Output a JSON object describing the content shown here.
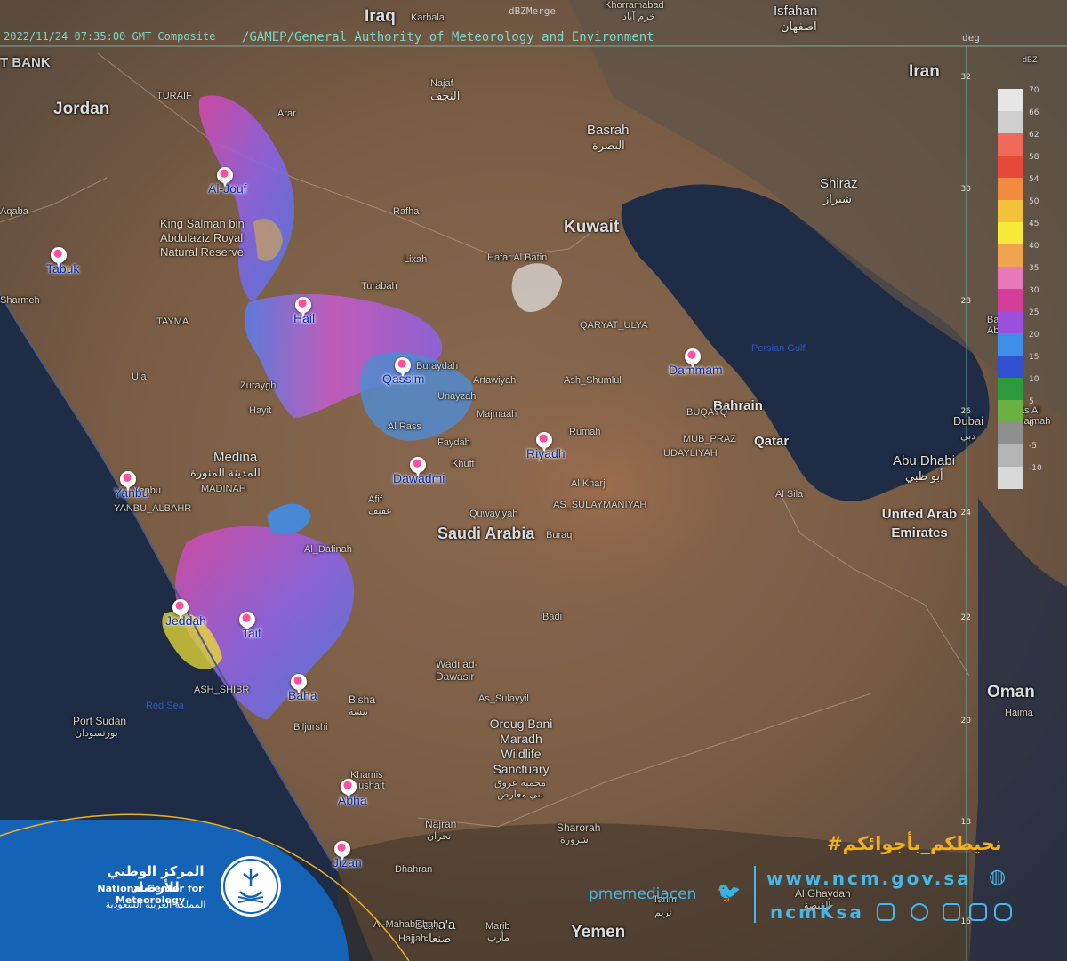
{
  "header": {
    "timestamp": "2022/11/24 07:35:00 GMT Composite",
    "source": "/GAMEP/General Authority of Meteorology and Environment",
    "product": "dBZMerge",
    "unit": "deg"
  },
  "labels": {
    "iraq": "Iraq",
    "karbala": "Karbala",
    "khorramabad": "Khorramabad",
    "khorramabad_ar": "خرم آباد",
    "isfahan": "Isfahan",
    "isfahan_ar": "اصفهان",
    "westbank": "T BANK",
    "jordan": "Jordan",
    "iran": "Iran",
    "najaf": "Najaf",
    "najaf_ar": "النجف",
    "basrah": "Basrah",
    "basrah_ar": "البصرة",
    "shiraz": "Shiraz",
    "shiraz_ar": "شيراز",
    "kuwait": "Kuwait",
    "turaif": "TURAIF",
    "arar": "Arar",
    "rafha": "Rafha",
    "lixah": "Lixah",
    "hafar": "Hafar Al Batin",
    "qaryat": "QARYAT_ULYA",
    "aqaba": "Aqaba",
    "tabuk": "Tabuk",
    "sharmeh": "Sharmeh",
    "king_salman": "King Salman bin Abdulaziz Royal Natural Reserve",
    "turabah": "Turabah",
    "tayma": "TAYMA",
    "ula": "Ula",
    "burayda": "Buraydah",
    "artawiyah": "Artawiyah",
    "shumlul": "Ash_Shumlul",
    "persian_gulf": "Persian Gulf",
    "bandar": "Bandar Abbas",
    "bahrain": "Bahrain",
    "buqayq": "BUQAYQ",
    "mubraz": "MUB_PRAZ",
    "udayliyah": "UDAYLIYAH",
    "qatar": "Qatar",
    "dubai": "Dubai",
    "dubai_ar": "دبي",
    "raskhaimah": "Ras Al Khaimah",
    "abudhabi": "Abu Dhabi",
    "abudhabi_ar": "أبو ظبي",
    "uae": "United Arab Emirates",
    "alsila": "Al Sila",
    "zurayq": "Zuraygh",
    "hayit": "Hayit",
    "majnaah": "Majmaah",
    "rumah": "Rumah",
    "faydah": "Faydah",
    "khuff": "Khuff",
    "alrass": "Al Rass",
    "unayzah": "Unayzah",
    "medina": "Medina",
    "medina_ar": "المدينة المنورة",
    "madinah": "MADINAH",
    "yanbu": "Yanbu",
    "yanbu2": "YANBU_ALBAHR",
    "afif": "Afif",
    "afif_ar": "عفيف",
    "alkharj": "Al Kharj",
    "sulaymaniyah": "AS_SULAYMANIYAH",
    "quwayiyah": "Quwayiyah",
    "saudi": "Saudi Arabia",
    "buqay": "Buraq",
    "adinah": "Al_Dafinah",
    "badi": "Badi",
    "wadi": "Wadi ad-Dawasir",
    "sulayyil": "As_Sulayyil",
    "oman": "Oman",
    "haima": "Haima",
    "portsudan": "Port Sudan",
    "portsudan_ar": "بورتسودان",
    "redsea": "Red Sea",
    "ashshibr": "ASH_SHIBR",
    "bisha": "Bisha",
    "bisha_ar": "بيشة",
    "biljurshi": "Biljurshi",
    "oroug": "Oroug Bani Maradh Wildlife Sanctuary",
    "oroug_ar": "محمية عروق بني معارض",
    "khamis": "Khamis Mushait",
    "najran": "Najran",
    "najran_ar": "نجران",
    "sharorah": "Sharorah",
    "sharorah_ar": "شرورة",
    "dhahran": "Dhahran",
    "yemen": "Yemen",
    "sanaa": "Sana'a",
    "sanaa_ar": "صنعاء",
    "marib": "Marib",
    "marib_ar": "مأرب",
    "alghaydah": "Al Ghaydah",
    "alghaydah_ar": "الغيضة",
    "hajjah": "Hajjah",
    "harim": "Tarim",
    "harim_ar": "تريم",
    "almahabishah": "Al-Mahabishah",
    "baha": "Baha"
  },
  "radar_sites": [
    {
      "name": "Al-Jouf",
      "city": "Al-Jouf"
    },
    {
      "name": "Tabuk",
      "city": "Tabuk"
    },
    {
      "name": "Hail",
      "city": "Hail"
    },
    {
      "name": "Qassim",
      "city": "Qassim"
    },
    {
      "name": "Dammam",
      "city": "Dammam"
    },
    {
      "name": "Riyadh",
      "city": "Riyadh"
    },
    {
      "name": "Dawadmi",
      "city": "Dawadmi"
    },
    {
      "name": "Yanbu",
      "city": "Yanbu"
    },
    {
      "name": "Jeddah",
      "city": "Jeddah"
    },
    {
      "name": "Taif",
      "city": "Taif"
    },
    {
      "name": "Baha",
      "city": "Baha"
    },
    {
      "name": "Abha",
      "city": "Abha"
    },
    {
      "name": "Jizan",
      "city": "Jizan"
    }
  ],
  "latitude_ticks": [
    "32",
    "30",
    "28",
    "26",
    "24",
    "22",
    "20",
    "18",
    "16"
  ],
  "legend": {
    "title": "dBZ",
    "entries": [
      {
        "value": "70",
        "color": "#e6e6e6"
      },
      {
        "value": "66",
        "color": "#cfcfcf"
      },
      {
        "value": "62",
        "color": "#ef6a5a"
      },
      {
        "value": "58",
        "color": "#e84a3a"
      },
      {
        "value": "54",
        "color": "#f18b3f"
      },
      {
        "value": "50",
        "color": "#f4c13a"
      },
      {
        "value": "45",
        "color": "#f7ea3a"
      },
      {
        "value": "40",
        "color": "#f0a34f"
      },
      {
        "value": "35",
        "color": "#e879b8"
      },
      {
        "value": "30",
        "color": "#d53e98"
      },
      {
        "value": "25",
        "color": "#9b4fdc"
      },
      {
        "value": "20",
        "color": "#3f8fe8"
      },
      {
        "value": "15",
        "color": "#3151d1"
      },
      {
        "value": "10",
        "color": "#2a9a3d"
      },
      {
        "value": "5",
        "color": "#6ab144"
      },
      {
        "value": "0",
        "color": "#8e8e8e"
      },
      {
        "value": "-5",
        "color": "#b4b4b4"
      },
      {
        "value": "-10",
        "color": "#d9d9d9"
      }
    ]
  },
  "branding": {
    "org_ar": "المركز الوطني للأرصاد",
    "org_en": "National Center for Meteorology",
    "country_ar": "المملكة العربية السعودية",
    "hashtag": "#نحيطكم_بأجوائكم",
    "twitter": "pmemediacen",
    "website": "www.ncm.gov.sa",
    "handle": "ncmKsa"
  },
  "colors": {
    "header_text": "#7fd6c4",
    "brand_blue": "#1563b7",
    "accent_yellow": "#f2b01e",
    "social_blue": "#47b7e8",
    "pin": "#ff4fa0"
  }
}
